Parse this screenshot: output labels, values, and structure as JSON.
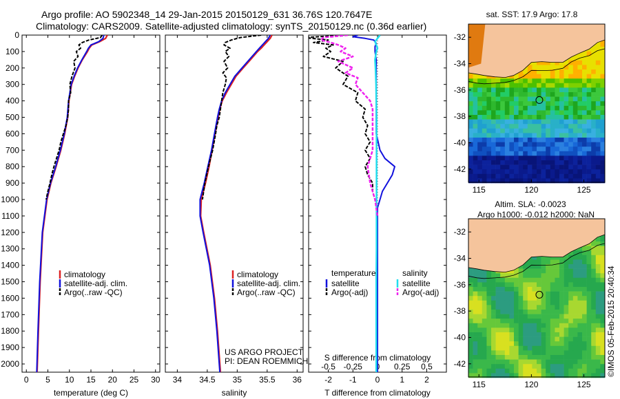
{
  "header": {
    "title_line1": "Argo profile: AO 5902348_14 29-Jan-2015 20150129_631 36.76S 120.7647E",
    "title_line2": "Climatology: CARS2009. Satellite-adjusted climatology: synTS_20150129.nc (0.36d earlier)"
  },
  "colors": {
    "climatology": "#dd2222",
    "satellite": "#1111dd",
    "argo": "#000000",
    "salinity_satellite": "#22ddee",
    "argo_adj_salinity": "#ee22ee",
    "land": "#f5c49c"
  },
  "chart_data": [
    {
      "id": "temperature",
      "type": "line",
      "xlabel": "temperature (deg C)",
      "ylabel": "",
      "xlim": [
        -1,
        31
      ],
      "ylim": [
        0,
        2050
      ],
      "xticks": [
        "0",
        "5",
        "10",
        "15",
        "20",
        "25",
        "30"
      ],
      "xtick_values": [
        0,
        5,
        10,
        15,
        20,
        25,
        30
      ],
      "yticks": [
        "0",
        "100",
        "200",
        "300",
        "400",
        "500",
        "600",
        "700",
        "800",
        "900",
        "1000",
        "1100",
        "1200",
        "1300",
        "1400",
        "1500",
        "1600",
        "1700",
        "1800",
        "1900",
        "2000"
      ],
      "ytick_values": [
        0,
        100,
        200,
        300,
        400,
        500,
        600,
        700,
        800,
        900,
        1000,
        1100,
        1200,
        1300,
        1400,
        1500,
        1600,
        1700,
        1800,
        1900,
        2000
      ],
      "legend": [
        "climatology",
        "satellite-adj. clim.",
        "Argo(..raw -QC)"
      ],
      "series": [
        {
          "name": "climatology",
          "depth": [
            0,
            20,
            40,
            60,
            80,
            100,
            150,
            200,
            250,
            300,
            400,
            500,
            600,
            700,
            800,
            900,
            1000,
            1200,
            1500,
            1800,
            2050
          ],
          "values": [
            18.8,
            18.4,
            17.0,
            15.2,
            14.6,
            14.2,
            13.0,
            12.0,
            11.2,
            10.5,
            9.9,
            9.6,
            8.9,
            8.0,
            6.9,
            5.7,
            4.8,
            3.8,
            3.2,
            2.8,
            2.5
          ]
        },
        {
          "name": "satellite-adj. clim.",
          "depth": [
            0,
            20,
            40,
            60,
            80,
            100,
            150,
            200,
            250,
            300,
            400,
            500,
            600,
            700,
            800,
            900,
            1000,
            1200,
            1500,
            1800,
            2050
          ],
          "values": [
            18.0,
            17.8,
            16.8,
            15.0,
            14.4,
            14.0,
            12.9,
            11.9,
            11.1,
            10.4,
            9.8,
            9.5,
            8.8,
            7.9,
            6.8,
            5.6,
            4.7,
            3.7,
            3.1,
            2.7,
            2.4
          ]
        },
        {
          "name": "Argo(..raw -QC)",
          "depth": [
            0,
            15,
            30,
            45,
            60,
            80,
            100,
            130,
            160,
            200,
            250,
            300,
            350,
            400,
            450,
            500,
            550,
            600,
            650,
            700,
            750,
            800,
            850,
            900,
            950,
            1000
          ],
          "values": [
            17.6,
            17.2,
            14.5,
            13.0,
            12.2,
            12.6,
            11.6,
            12.0,
            11.0,
            11.3,
            10.6,
            10.1,
            10.3,
            9.8,
            9.8,
            9.6,
            9.2,
            8.6,
            8.0,
            7.6,
            7.0,
            6.4,
            5.9,
            5.5,
            5.0,
            4.6
          ]
        }
      ]
    },
    {
      "id": "salinity",
      "type": "line",
      "xlabel": "salinity",
      "ylabel": "",
      "xlim": [
        33.8,
        36.1
      ],
      "ylim": [
        0,
        2050
      ],
      "xticks": [
        "34",
        "34.5",
        "35",
        "35.5",
        "36"
      ],
      "xtick_values": [
        34,
        34.5,
        35,
        35.5,
        36
      ],
      "legend": [
        "climatology",
        "satellite-adj. clim.",
        "Argo(..raw -QC)"
      ],
      "annotations": [
        "US ARGO PROJECT",
        "PI: DEAN ROEMMICH"
      ],
      "series": [
        {
          "name": "climatology",
          "depth": [
            0,
            20,
            40,
            60,
            80,
            100,
            150,
            200,
            250,
            300,
            350,
            400,
            450,
            500,
            600,
            700,
            800,
            900,
            1000,
            1100,
            1200,
            1400,
            1600,
            1800,
            2050
          ],
          "values": [
            35.58,
            35.55,
            35.5,
            35.45,
            35.4,
            35.34,
            35.22,
            35.1,
            34.98,
            34.9,
            34.82,
            34.75,
            34.71,
            34.68,
            34.63,
            34.58,
            34.53,
            34.47,
            34.4,
            34.39,
            34.44,
            34.55,
            34.62,
            34.67,
            34.72
          ]
        },
        {
          "name": "satellite-adj. clim.",
          "depth": [
            0,
            20,
            40,
            60,
            80,
            100,
            150,
            200,
            250,
            300,
            350,
            400,
            450,
            500,
            600,
            700,
            800,
            900,
            1000,
            1100,
            1200,
            1400,
            1600,
            1800,
            2050
          ],
          "values": [
            35.55,
            35.52,
            35.47,
            35.42,
            35.37,
            35.32,
            35.2,
            35.08,
            34.96,
            34.88,
            34.8,
            34.74,
            34.7,
            34.67,
            34.62,
            34.57,
            34.51,
            34.45,
            34.38,
            34.38,
            34.43,
            34.54,
            34.61,
            34.66,
            34.71
          ]
        },
        {
          "name": "Argo(..raw -QC)",
          "depth": [
            0,
            15,
            30,
            45,
            60,
            80,
            100,
            130,
            160,
            200,
            230,
            260,
            300,
            350,
            400,
            450,
            500,
            550,
            600,
            700,
            800,
            900,
            1000
          ],
          "values": [
            35.4,
            35.05,
            34.9,
            34.8,
            34.78,
            34.88,
            34.8,
            34.86,
            34.78,
            34.84,
            34.76,
            34.82,
            34.8,
            34.76,
            34.74,
            34.72,
            34.7,
            34.66,
            34.64,
            34.59,
            34.52,
            34.46,
            34.42
          ]
        }
      ]
    },
    {
      "id": "difference",
      "type": "line",
      "xlabel": "T difference from climatology",
      "top_label": "S difference from climatology",
      "xlim": [
        -2.8,
        2.8
      ],
      "ylim": [
        0,
        2050
      ],
      "xticks": [
        "-2",
        "-1",
        "0",
        "1",
        "2"
      ],
      "xtick_values": [
        -2,
        -1,
        0,
        1,
        2
      ],
      "top_xticks": [
        "-0.5",
        "-0.25",
        "0",
        "0.25",
        "0.5"
      ],
      "top_xtick_values": [
        -2,
        -1,
        0,
        1,
        2
      ],
      "legend": {
        "temperature_header": "temperature",
        "salinity_header": "salinity",
        "temperature_items": [
          "satellite",
          "Argo(-adj)"
        ],
        "salinity_items": [
          "satellite",
          "Argo(-adj)"
        ]
      },
      "series": [
        {
          "name": "T satellite",
          "depth": [
            0,
            10,
            20,
            30,
            40,
            50,
            70,
            100,
            150,
            200,
            300,
            400,
            500,
            600,
            700,
            750,
            800,
            850,
            900,
            950,
            1000,
            1050,
            1100,
            1200,
            1400,
            1600,
            1800,
            2050
          ],
          "values": [
            -0.8,
            -1.0,
            -0.5,
            -0.15,
            -0.1,
            -0.05,
            -0.1,
            -0.1,
            -0.05,
            -0.05,
            -0.05,
            -0.05,
            -0.05,
            -0.05,
            0.1,
            0.3,
            0.7,
            0.6,
            0.4,
            0.2,
            0.1,
            0.0,
            0.0,
            0.0,
            0.0,
            0.0,
            0.0,
            0.0
          ]
        },
        {
          "name": "T Argo(-adj)",
          "depth": [
            0,
            15,
            30,
            45,
            60,
            80,
            100,
            130,
            160,
            200,
            250,
            300,
            350,
            400,
            450,
            500,
            550,
            600,
            650,
            700,
            750,
            800,
            850,
            900,
            950,
            1000,
            1100
          ],
          "values": [
            -1.2,
            -3.0,
            -2.0,
            -2.6,
            -1.8,
            -2.1,
            -1.9,
            -2.2,
            -1.4,
            -1.7,
            -1.2,
            -1.4,
            -0.8,
            -0.9,
            -0.5,
            -0.6,
            -0.4,
            -0.5,
            -0.3,
            -0.5,
            -0.3,
            -0.5,
            -0.4,
            -0.2,
            -0.2,
            -0.1,
            0.0
          ]
        },
        {
          "name": "S satellite",
          "depth": [
            0,
            20,
            40,
            60,
            80,
            100,
            150,
            200,
            300,
            400,
            500,
            700,
            900,
            1100,
            1300,
            1500,
            1800,
            2050
          ],
          "values": [
            0.1,
            0.0,
            -0.1,
            -0.05,
            0.0,
            -0.05,
            -0.1,
            -0.08,
            -0.06,
            -0.05,
            -0.04,
            -0.04,
            -0.04,
            -0.04,
            -0.04,
            -0.05,
            -0.05,
            -0.05
          ]
        },
        {
          "name": "S Argo(-adj)",
          "depth": [
            0,
            15,
            30,
            45,
            60,
            80,
            100,
            130,
            160,
            200,
            230,
            260,
            300,
            350,
            400,
            450,
            500,
            550,
            600,
            700,
            800,
            900,
            1000,
            1100
          ],
          "values": [
            -1.2,
            -2.2,
            -2.3,
            -1.9,
            -1.6,
            -1.3,
            -1.5,
            -1.0,
            -1.6,
            -1.0,
            -1.3,
            -0.8,
            -0.9,
            -0.6,
            -0.3,
            -0.2,
            -0.2,
            -0.2,
            -0.2,
            -0.2,
            -0.4,
            -0.3,
            -0.1,
            0.0
          ]
        }
      ]
    },
    {
      "id": "sst_map",
      "type": "heatmap",
      "title": "sat. SST: 17.9 Argo: 17.8",
      "xticks": [
        "115",
        "120",
        "125"
      ],
      "yticks": [
        "-32",
        "-34",
        "-36",
        "-38",
        "-40",
        "-42"
      ],
      "xlim": [
        114,
        127
      ],
      "ylim": [
        -43,
        -31
      ],
      "marker": {
        "lon": 120.76,
        "lat": -36.76
      }
    },
    {
      "id": "sla_map",
      "type": "heatmap",
      "title_line1": "Altim. SLA: -0.0023",
      "title_line2": "Argo h1000: -0.012 h2000: NaN",
      "xticks": [
        "115",
        "120",
        "125"
      ],
      "yticks": [
        "-32",
        "-34",
        "-36",
        "-38",
        "-40",
        "-42"
      ],
      "xlim": [
        114,
        127
      ],
      "ylim": [
        -43,
        -31
      ],
      "marker": {
        "lon": 120.76,
        "lat": -36.76
      },
      "side_label": "©IMOS 05-Feb-2015 20:40:34"
    }
  ]
}
